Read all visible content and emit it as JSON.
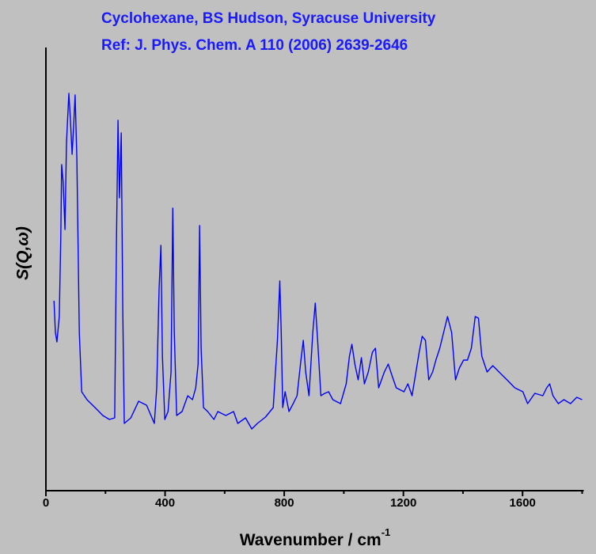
{
  "chart_data": {
    "type": "line",
    "title": [
      "Cyclohexane, BS Hudson, Syracuse University",
      "Ref: J. Phys. Chem. A 110 (2006) 2639-2646"
    ],
    "xlabel": "Wavenumber / cm",
    "xlabel_sup": "-1",
    "ylabel": "S(Q,ω)",
    "xlim": [
      0,
      1800
    ],
    "xticks": [
      0,
      400,
      800,
      1200,
      1600
    ],
    "xticks_minor": [
      200,
      600,
      1000,
      1400,
      1800
    ],
    "ylim": [
      0,
      560
    ],
    "yticks": [],
    "series": [
      {
        "name": "S(Q,ω)",
        "color": "#0000ff",
        "x": [
          27,
          32,
          37,
          45,
          50,
          53,
          58,
          64,
          69,
          77,
          82,
          88,
          93,
          98,
          104,
          112,
          120,
          138,
          165,
          191,
          213,
          231,
          237,
          242,
          247,
          253,
          258,
          263,
          285,
          311,
          338,
          364,
          372,
          380,
          386,
          391,
          399,
          410,
          420,
          426,
          431,
          439,
          457,
          476,
          492,
          503,
          511,
          516,
          521,
          529,
          543,
          564,
          577,
          604,
          630,
          644,
          670,
          691,
          710,
          737,
          763,
          777,
          785,
          790,
          795,
          803,
          816,
          830,
          843,
          856,
          864,
          872,
          883,
          896,
          904,
          912,
          923,
          936,
          949,
          963,
          989,
          1008,
          1019,
          1027,
          1037,
          1048,
          1059,
          1069,
          1082,
          1096,
          1106,
          1117,
          1136,
          1149,
          1162,
          1176,
          1202,
          1215,
          1229,
          1242,
          1253,
          1263,
          1274,
          1285,
          1298,
          1309,
          1322,
          1335,
          1348,
          1362,
          1375,
          1388,
          1402,
          1415,
          1428,
          1441,
          1452,
          1463,
          1481,
          1500,
          1521,
          1548,
          1574,
          1601,
          1617,
          1641,
          1668,
          1681,
          1691,
          1702,
          1720,
          1739,
          1761,
          1782,
          1800
        ],
        "values": [
          240,
          200,
          188,
          220,
          320,
          412,
          390,
          330,
          440,
          502,
          470,
          425,
          460,
          500,
          420,
          200,
          125,
          115,
          105,
          95,
          90,
          92,
          320,
          468,
          370,
          452,
          230,
          85,
          92,
          113,
          108,
          85,
          130,
          255,
          310,
          170,
          90,
          100,
          150,
          357,
          200,
          95,
          100,
          120,
          115,
          130,
          160,
          335,
          180,
          105,
          100,
          90,
          100,
          95,
          100,
          85,
          92,
          78,
          85,
          93,
          105,
          190,
          265,
          200,
          105,
          125,
          100,
          110,
          120,
          165,
          190,
          150,
          120,
          200,
          237,
          190,
          120,
          123,
          125,
          115,
          110,
          135,
          170,
          185,
          160,
          140,
          168,
          135,
          150,
          175,
          180,
          130,
          150,
          160,
          145,
          130,
          125,
          135,
          120,
          150,
          175,
          195,
          190,
          140,
          150,
          165,
          180,
          200,
          220,
          200,
          140,
          155,
          165,
          165,
          180,
          220,
          218,
          170,
          150,
          158,
          150,
          140,
          130,
          125,
          110,
          123,
          120,
          130,
          135,
          120,
          110,
          115,
          110,
          118,
          115
        ]
      }
    ]
  }
}
